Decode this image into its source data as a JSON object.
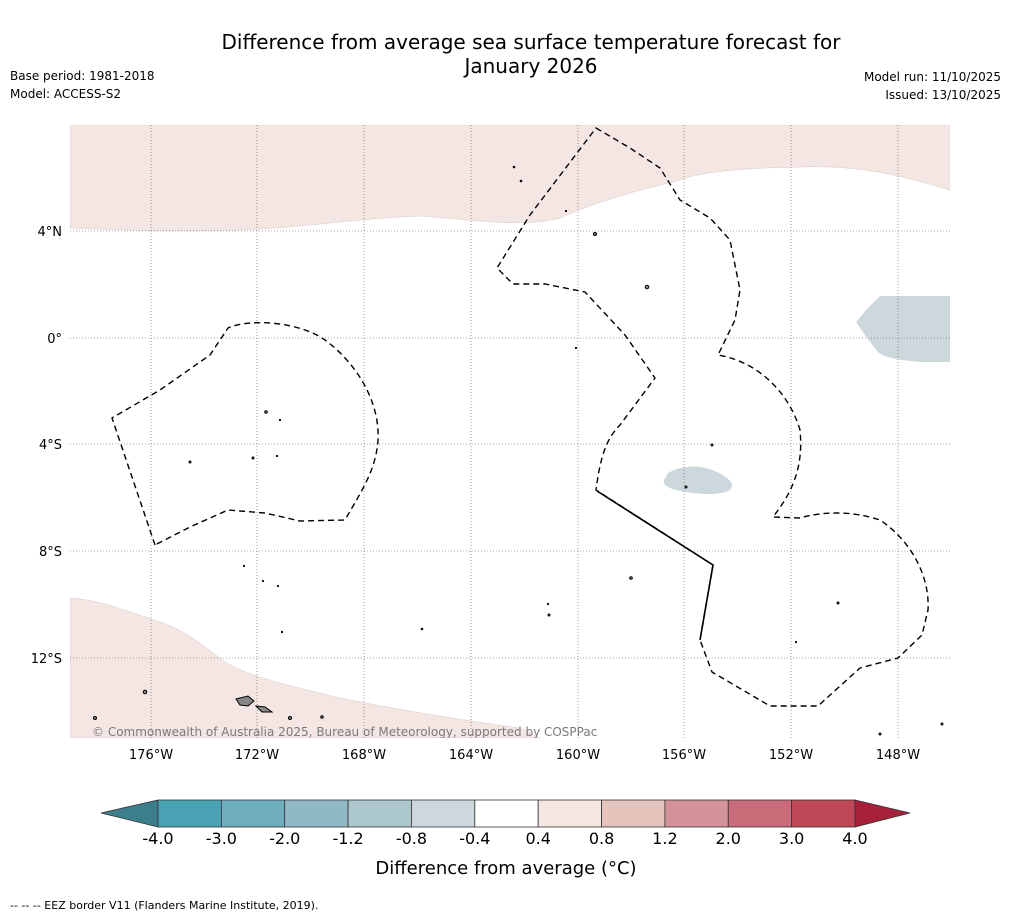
{
  "header": {
    "title_line1": "Difference from average sea surface temperature forecast for",
    "title_line2": "January 2026",
    "base_period": "Base period: 1981-2018",
    "model": "Model: ACCESS-S2",
    "model_run": "Model run: 11/10/2025",
    "issued": "Issued: 13/10/2025"
  },
  "map": {
    "lat_labels": [
      "4°N",
      "0°",
      "4°S",
      "8°S",
      "12°S"
    ],
    "lon_labels": [
      "176°W",
      "172°W",
      "168°W",
      "164°W",
      "160°W",
      "156°W",
      "152°W",
      "148°W"
    ],
    "copyright": "© Commonwealth of Australia 2025, Bureau of Meteorology, supported by COSPPac"
  },
  "colorbar": {
    "title": "Difference from average (°C)",
    "bounds": [
      "-4.0",
      "-3.0",
      "-2.0",
      "-1.2",
      "-0.8",
      "-0.4",
      "0.4",
      "0.8",
      "1.2",
      "2.0",
      "3.0",
      "4.0"
    ],
    "colors": [
      "#4aa3b4",
      "#6fafbd",
      "#8fbac5",
      "#acc8cd",
      "#ccd8db",
      "#ffffff",
      "#f4e6e3",
      "#e6c4be",
      "#d4939a",
      "#c96b78",
      "#be4857"
    ],
    "low_extend_color": "#3b7f8a",
    "high_extend_color": "#a8213a"
  },
  "footer": {
    "eez_note": "-- -- -- EEZ border V11 (Flanders Marine Institute, 2019)."
  }
}
